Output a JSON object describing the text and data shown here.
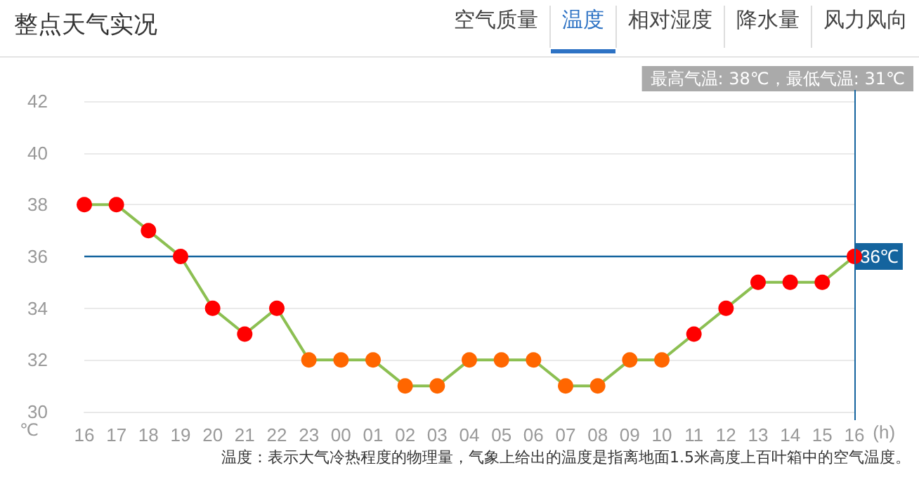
{
  "chart_data": {
    "type": "line",
    "title": "整点天气实况",
    "xlabel": "(h)",
    "ylabel": "℃",
    "annotations": [
      "最高气温: 38℃，最低气温: 31℃",
      "温度：表示大气冷热程度的物理量，气象上给出的温度是指离地面1.5米高度上百叶箱中的空气温度。",
      "空气质量",
      "温度",
      "相对湿度",
      "降水量",
      "风力风向"
    ],
    "categories": [
      "16",
      "17",
      "18",
      "19",
      "20",
      "21",
      "22",
      "23",
      "00",
      "01",
      "02",
      "03",
      "04",
      "05",
      "06",
      "07",
      "08",
      "09",
      "10",
      "11",
      "12",
      "13",
      "14",
      "15",
      "16"
    ],
    "series": [
      {
        "color": "#8cbf52",
        "values": [
          38,
          38,
          37,
          36,
          34,
          33,
          34,
          32,
          32,
          32,
          31,
          31,
          32,
          32,
          32,
          31,
          31,
          32,
          32,
          33,
          34,
          35,
          35,
          35,
          36
        ],
        "colors": [
          "#ff0000",
          "#ff0000",
          "#ff0000",
          "#ff0000",
          "#ff0000",
          "#ff0000",
          "#ff0000",
          "#ff6600",
          "#ff6600",
          "#ff6600",
          "#ff6600",
          "#ff6600",
          "#ff6600",
          "#ff6600",
          "#ff6600",
          "#ff6600",
          "#ff6600",
          "#ff6600",
          "#ff6600",
          "#ff0000",
          "#ff0000",
          "#ff0000",
          "#ff0000",
          "#ff0000",
          "#ff0000"
        ]
      }
    ],
    "ylim": [
      30,
      42
    ],
    "yticks": [
      30,
      32,
      34,
      36,
      38,
      40,
      42
    ],
    "grid": "y",
    "marker": "circle",
    "line_style": "solid",
    "ref_lines": [
      {
        "axis": "y",
        "value": 36,
        "label": "36℃",
        "color": "#14649e"
      }
    ]
  }
}
